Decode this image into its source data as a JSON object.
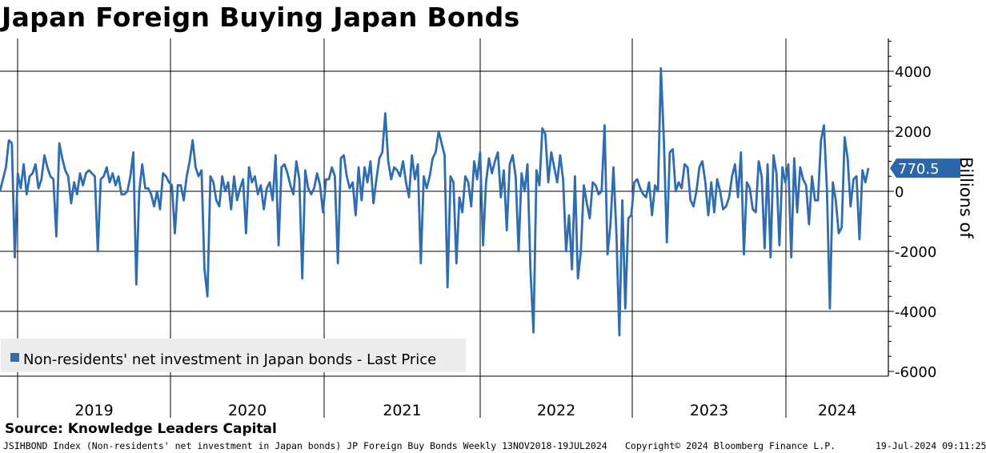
{
  "chart_data": {
    "type": "line",
    "title": "Japan Foreign Buying Japan Bonds",
    "ylabel": "Billions of",
    "ylim": [
      -6000,
      5000
    ],
    "yticks": [
      4000,
      2000,
      0,
      -2000,
      -4000,
      -6000
    ],
    "ytick_labels": [
      "4000",
      "2000",
      "0",
      "-2000",
      "-4000",
      "-6000"
    ],
    "years": [
      "2019",
      "2020",
      "2021",
      "2022",
      "2023",
      "2024"
    ],
    "last_value": 770.5,
    "last_label": "770.5",
    "legend": "Non-residents' net investment in Japan bonds - Last Price",
    "series_color": "#2f6db0",
    "series": [
      {
        "name": "Non-residents' net investment in Japan bonds - Last Price",
        "values": [
          0,
          400,
          800,
          1700,
          1600,
          -2200,
          600,
          100,
          900,
          -100,
          500,
          600,
          900,
          100,
          400,
          1200,
          800,
          500,
          400,
          -1500,
          1600,
          1100,
          700,
          500,
          -400,
          300,
          -100,
          600,
          200,
          600,
          700,
          600,
          500,
          -2000,
          400,
          500,
          800,
          300,
          600,
          200,
          500,
          -100,
          -100,
          0,
          500,
          1300,
          -3100,
          0,
          900,
          100,
          100,
          -100,
          -500,
          0,
          -600,
          600,
          500,
          300,
          200,
          -1400,
          200,
          200,
          -300,
          500,
          1000,
          1700,
          800,
          500,
          700,
          -2600,
          -3500,
          500,
          300,
          -300,
          -500,
          500,
          0,
          300,
          -600,
          500,
          -300,
          100,
          400,
          -1400,
          800,
          300,
          500,
          -100,
          200,
          -600,
          100,
          300,
          -300,
          1200,
          -1800,
          800,
          900,
          600,
          200,
          -100,
          1000,
          400,
          -2900,
          700,
          100,
          -100,
          100,
          600,
          200,
          -700,
          400,
          400,
          800,
          500,
          -2400,
          1100,
          1200,
          500,
          100,
          300,
          -800,
          800,
          -300,
          800,
          300,
          1000,
          -400,
          400,
          1100,
          1300,
          2600,
          1000,
          400,
          800,
          700,
          500,
          1000,
          300,
          -200,
          1200,
          400,
          900,
          -2400,
          500,
          100,
          500,
          1100,
          1300,
          2000,
          1600,
          1200,
          -3200,
          500,
          300,
          -2400,
          -200,
          -700,
          500,
          300,
          -500,
          1000,
          400,
          1300,
          -1800,
          300,
          1100,
          600,
          1000,
          1300,
          -200,
          700,
          -1300,
          900,
          1200,
          500,
          -2000,
          600,
          0,
          900,
          -2600,
          -4700,
          700,
          200,
          2100,
          1900,
          300,
          1300,
          800,
          300,
          1200,
          400,
          -2000,
          -800,
          -2600,
          500,
          -2900,
          -2000,
          200,
          -400,
          -900,
          300,
          200,
          -100,
          0,
          2200,
          -2100,
          -1100,
          800,
          -1400,
          -4800,
          -300,
          -3900,
          -900,
          -800,
          300,
          400,
          100,
          -100,
          -200,
          300,
          -800,
          200,
          0,
          4100,
          1700,
          -1700,
          1300,
          1400,
          0,
          300,
          100,
          900,
          800,
          -300,
          -500,
          0,
          800,
          1000,
          300,
          -800,
          300,
          -700,
          400,
          0,
          -600,
          -500,
          -200,
          500,
          900,
          -200,
          1300,
          -2100,
          300,
          100,
          -600,
          -700,
          1000,
          500,
          -1900,
          900,
          -2200,
          1200,
          600,
          -1800,
          800,
          300,
          900,
          -2200,
          1100,
          -700,
          800,
          400,
          200,
          -1100,
          500,
          -300,
          -300,
          1700,
          2200,
          100,
          -3900,
          300,
          -300,
          -1400,
          -1200,
          1800,
          1100,
          -500,
          400,
          500,
          -1600,
          700,
          300,
          770.5
        ]
      }
    ]
  },
  "footer": {
    "source": "Source: Knowledge Leaders Capital",
    "description": "JSIHBOND Index (Non-residents' net investment in Japan bonds) JP Foreign Buy Bonds  Weekly 13NOV2018-19JUL2024",
    "copyright": "Copyright© 2024 Bloomberg Finance L.P.",
    "timestamp": "19-Jul-2024 09:11:25"
  }
}
